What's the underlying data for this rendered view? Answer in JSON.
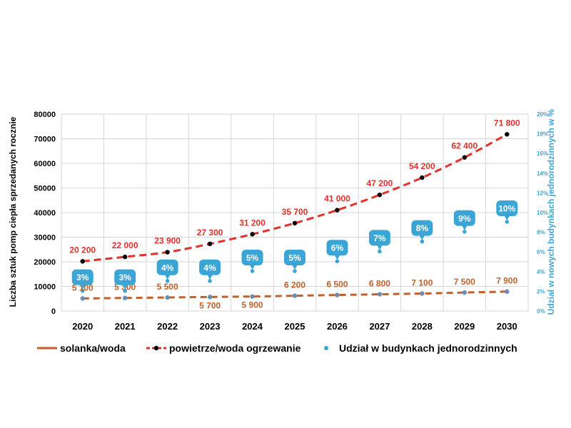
{
  "chart_data": {
    "type": "line",
    "categories": [
      "2020",
      "2021",
      "2022",
      "2023",
      "2024",
      "2025",
      "2026",
      "2027",
      "2028",
      "2029",
      "2030"
    ],
    "ylabel": "Liczba  sztuk pomp ciepła sprzedanych rocznie",
    "y2label": "Udział w nowych budynkach jednorodzinnych w %",
    "ylim": [
      0,
      80000
    ],
    "y2lim": [
      0,
      20
    ],
    "yticks": [
      "0",
      "10000",
      "20000",
      "30000",
      "40000",
      "50000",
      "60000",
      "70000",
      "80000"
    ],
    "y2ticks": [
      "0%",
      "2%",
      "4%",
      "6%",
      "8%",
      "10%",
      "12%",
      "14%",
      "16%",
      "18%",
      "20%"
    ],
    "grid": true,
    "legend_position": "bottom",
    "series": [
      {
        "name": "solanka/woda",
        "values": [
          5100,
          5300,
          5500,
          5700,
          5900,
          6200,
          6500,
          6800,
          7100,
          7500,
          7900
        ],
        "labels": [
          "5 100",
          "5 300",
          "5 500",
          "5 700",
          "5 900",
          "6 200",
          "6 500",
          "6 800",
          "7 100",
          "7 500",
          "7 900"
        ],
        "color": "#C0602B",
        "style": "dashed line"
      },
      {
        "name": "powietrze/woda ogrzewanie",
        "values": [
          20200,
          22000,
          23900,
          27300,
          31200,
          35700,
          41000,
          47200,
          54200,
          62400,
          71800
        ],
        "labels": [
          "20 200",
          "22 000",
          "23 900",
          "27 300",
          "31 200",
          "35 700",
          "41 000",
          "47 200",
          "54 200",
          "62 400",
          "71 800"
        ],
        "color": "#E3302B",
        "marker_color": "#000000",
        "style": "dashed line with markers"
      },
      {
        "name": "Udział w budynkach jednorodzinnych",
        "axis": "right",
        "values": [
          3,
          3,
          4,
          4,
          5,
          5,
          6,
          7,
          8,
          9,
          10
        ],
        "labels": [
          "3%",
          "3%",
          "4%",
          "4%",
          "5%",
          "5%",
          "6%",
          "7%",
          "8%",
          "9%",
          "10%"
        ],
        "color": "#3BA6D6",
        "style": "points with callout bubbles"
      }
    ]
  }
}
